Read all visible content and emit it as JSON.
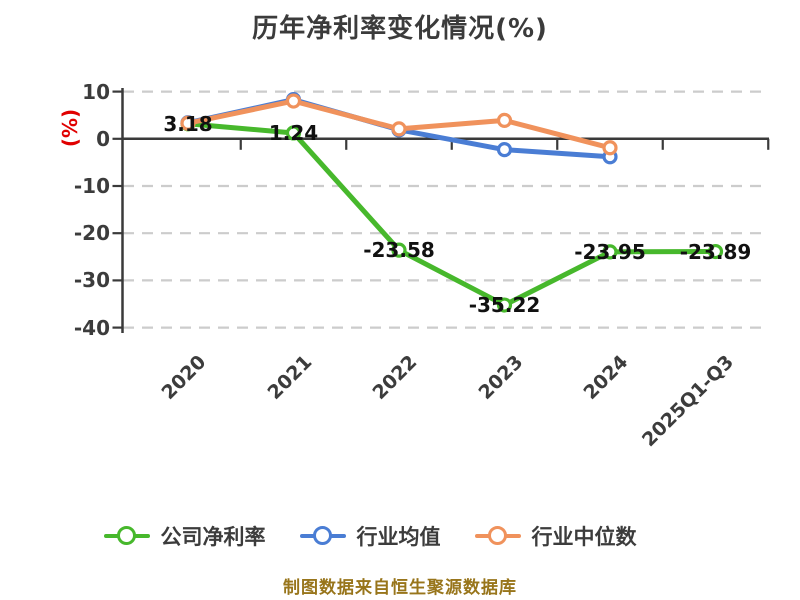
{
  "page": {
    "background": "#ffffff"
  },
  "title": {
    "text": "历年净利率变化情况(%)",
    "color": "#3b3b3b"
  },
  "footer": {
    "text": "制图数据来自恒生聚源数据库",
    "color": "#98751b"
  },
  "chart_data": {
    "type": "line",
    "title": "历年净利率变化情况(%)",
    "ylabel": "(%)",
    "ylabel_color": "#e00000",
    "categories": [
      "2020",
      "2021",
      "2022",
      "2023",
      "2024",
      "2025Q1-Q3"
    ],
    "series": [
      {
        "id": "company-net-margin",
        "name": "公司净利率",
        "color": "#47b82c",
        "values": [
          3.18,
          1.24,
          -23.58,
          -35.22,
          -23.95,
          -23.89
        ],
        "point_labels": [
          "3.18",
          "1.24",
          "-23.58",
          "-35.22",
          "-23.95",
          "-23.89"
        ]
      },
      {
        "id": "industry-mean",
        "name": "行业均值",
        "color": "#4a7dd4",
        "values": [
          3.4,
          8.3,
          1.9,
          -2.3,
          -3.8,
          null
        ],
        "point_labels": null
      },
      {
        "id": "industry-median",
        "name": "行业中位数",
        "color": "#f0925c",
        "values": [
          3.3,
          8.0,
          2.1,
          3.9,
          -1.9,
          null
        ],
        "point_labels": null
      }
    ],
    "ylim": [
      -40,
      10
    ],
    "yticks": [
      10,
      0,
      -10,
      -20,
      -30,
      -40
    ],
    "ytick_labels": [
      "10",
      "0",
      "-10",
      "-20",
      "-30",
      "-40"
    ],
    "grid": "dashed",
    "legend_position": "bottom",
    "axis_color": "#3a3a3a",
    "grid_color": "#cccccc",
    "tick_label_color": "#3c3c3c",
    "point_label_color": "#111111"
  }
}
